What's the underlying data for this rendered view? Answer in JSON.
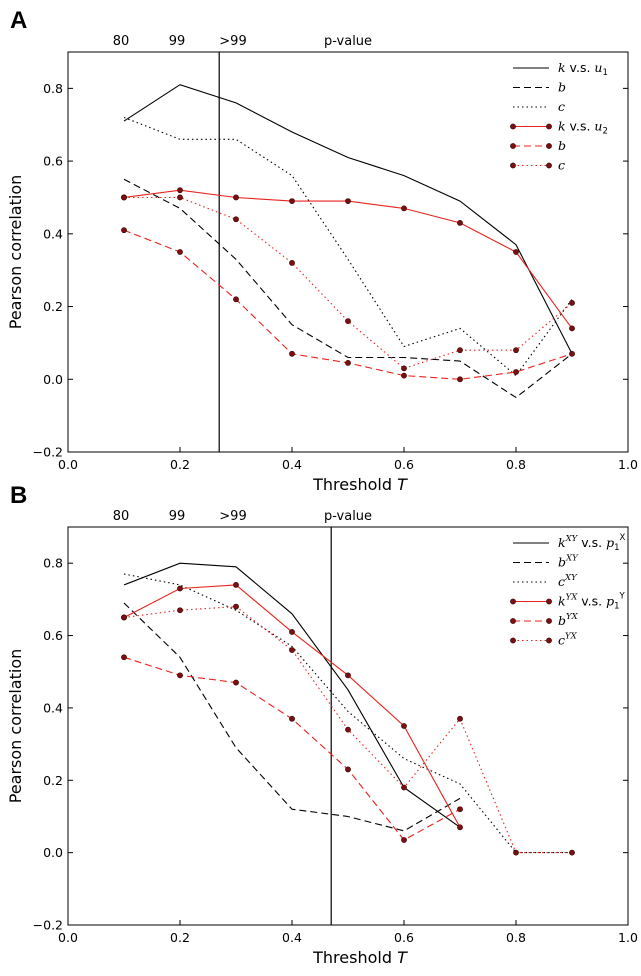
{
  "chart_data": [
    {
      "panel_letter": "A",
      "type": "line",
      "xlabel": "Threshold",
      "xlabel_italic": "T",
      "ylabel": "Pearson correlation",
      "xlim": [
        0.0,
        1.0
      ],
      "ylim": [
        -0.2,
        0.9
      ],
      "xticks": [
        "0.0",
        "0.2",
        "0.4",
        "0.6",
        "0.8",
        "1.0"
      ],
      "yticks": [
        "−0.2",
        "0.0",
        "0.2",
        "0.4",
        "0.6",
        "0.8"
      ],
      "top_axis": {
        "label": "p-value",
        "ticks": [
          "80",
          "99",
          ">99"
        ]
      },
      "vline_x": 0.27,
      "legend_position": "top-right",
      "series": [
        {
          "name": "k",
          "name_suffix": " v.s. ",
          "name_var": "u",
          "name_sub": "1",
          "color": "#000000",
          "dash": "solid",
          "marker": false,
          "x": [
            0.1,
            0.2,
            0.3,
            0.4,
            0.5,
            0.6,
            0.7,
            0.8,
            0.9
          ],
          "y": [
            0.71,
            0.81,
            0.76,
            0.68,
            0.61,
            0.56,
            0.49,
            0.37,
            0.07
          ]
        },
        {
          "name": "b",
          "color": "#000000",
          "dash": "dashed",
          "marker": false,
          "x": [
            0.1,
            0.2,
            0.3,
            0.4,
            0.5,
            0.6,
            0.7,
            0.8,
            0.9
          ],
          "y": [
            0.55,
            0.47,
            0.33,
            0.15,
            0.06,
            0.06,
            0.05,
            -0.05,
            0.07
          ]
        },
        {
          "name": "c",
          "color": "#000000",
          "dash": "dotted",
          "marker": false,
          "x": [
            0.1,
            0.2,
            0.3,
            0.4,
            0.5,
            0.6,
            0.7,
            0.8,
            0.9
          ],
          "y": [
            0.72,
            0.66,
            0.66,
            0.56,
            0.33,
            0.09,
            0.14,
            0.01,
            0.22
          ]
        },
        {
          "name": "k",
          "name_suffix": " v.s. ",
          "name_var": "u",
          "name_sub": "2",
          "color": "#e8231e",
          "dash": "solid",
          "marker": true,
          "x": [
            0.1,
            0.2,
            0.3,
            0.4,
            0.5,
            0.6,
            0.7,
            0.8,
            0.9
          ],
          "y": [
            0.5,
            0.52,
            0.5,
            0.49,
            0.49,
            0.47,
            0.43,
            0.35,
            0.14
          ]
        },
        {
          "name": "b",
          "color": "#e8231e",
          "dash": "dashed",
          "marker": true,
          "x": [
            0.1,
            0.2,
            0.3,
            0.4,
            0.5,
            0.6,
            0.7,
            0.8,
            0.9
          ],
          "y": [
            0.41,
            0.35,
            0.22,
            0.07,
            0.045,
            0.01,
            0.0,
            0.02,
            0.07
          ]
        },
        {
          "name": "c",
          "color": "#e8231e",
          "dash": "dotted",
          "marker": true,
          "x": [
            0.1,
            0.2,
            0.3,
            0.4,
            0.5,
            0.6,
            0.7,
            0.8,
            0.9
          ],
          "y": [
            0.5,
            0.5,
            0.44,
            0.32,
            0.16,
            0.03,
            0.08,
            0.08,
            0.21
          ]
        }
      ]
    },
    {
      "panel_letter": "B",
      "type": "line",
      "xlabel": "Threshold",
      "xlabel_italic": "T",
      "ylabel": "Pearson correlation",
      "xlim": [
        0.0,
        1.0
      ],
      "ylim": [
        -0.2,
        0.9
      ],
      "xticks": [
        "0.0",
        "0.2",
        "0.4",
        "0.6",
        "0.8",
        "1.0"
      ],
      "yticks": [
        "−0.2",
        "0.0",
        "0.2",
        "0.4",
        "0.6",
        "0.8"
      ],
      "top_axis": {
        "label": "p-value",
        "ticks": [
          "80",
          "99",
          ">99"
        ]
      },
      "vline_x": 0.47,
      "legend_position": "top-right",
      "series": [
        {
          "name": "k",
          "name_sup": "XY",
          "name_suffix": " v.s. ",
          "name_var": "p",
          "name_sub": "1",
          "name_sup2": "X",
          "color": "#000000",
          "dash": "solid",
          "marker": false,
          "x": [
            0.1,
            0.2,
            0.3,
            0.4,
            0.5,
            0.6,
            0.7
          ],
          "y": [
            0.74,
            0.8,
            0.79,
            0.66,
            0.45,
            0.18,
            0.07
          ]
        },
        {
          "name": "b",
          "name_sup": "XY",
          "color": "#000000",
          "dash": "dashed",
          "marker": false,
          "x": [
            0.1,
            0.2,
            0.3,
            0.4,
            0.5,
            0.6,
            0.7
          ],
          "y": [
            0.69,
            0.54,
            0.29,
            0.12,
            0.1,
            0.06,
            0.15
          ]
        },
        {
          "name": "c",
          "name_sup": "XY",
          "color": "#000000",
          "dash": "dotted",
          "marker": false,
          "x": [
            0.1,
            0.2,
            0.3,
            0.4,
            0.5,
            0.6,
            0.7,
            0.8,
            0.9
          ],
          "y": [
            0.77,
            0.74,
            0.67,
            0.57,
            0.39,
            0.26,
            0.19,
            0.0,
            0.0
          ]
        },
        {
          "name": "k",
          "name_sup": "YX",
          "name_suffix": " v.s. ",
          "name_var": "p",
          "name_sub": "1",
          "name_sup2": "Y",
          "color": "#e8231e",
          "dash": "solid",
          "marker": true,
          "x": [
            0.1,
            0.2,
            0.3,
            0.4,
            0.5,
            0.6,
            0.7
          ],
          "y": [
            0.65,
            0.73,
            0.74,
            0.61,
            0.49,
            0.35,
            0.07
          ]
        },
        {
          "name": "b",
          "name_sup": "YX",
          "color": "#e8231e",
          "dash": "dashed",
          "marker": true,
          "x": [
            0.1,
            0.2,
            0.3,
            0.4,
            0.5,
            0.6,
            0.7
          ],
          "y": [
            0.54,
            0.49,
            0.47,
            0.37,
            0.23,
            0.035,
            0.12
          ]
        },
        {
          "name": "c",
          "name_sup": "YX",
          "color": "#e8231e",
          "dash": "dotted",
          "marker": true,
          "x": [
            0.1,
            0.2,
            0.3,
            0.4,
            0.5,
            0.6,
            0.7,
            0.8,
            0.9
          ],
          "y": [
            0.65,
            0.67,
            0.68,
            0.56,
            0.34,
            0.18,
            0.37,
            0.0,
            0.0
          ]
        }
      ]
    }
  ]
}
